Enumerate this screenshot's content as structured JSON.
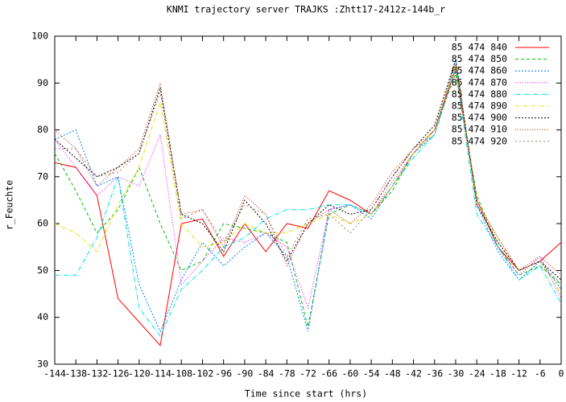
{
  "chart_data": {
    "type": "line",
    "title": "KNMI trajectory server TRAJKS :Zhtt17-2412z-144b_r",
    "xlabel": "Time since start (hrs)",
    "ylabel": "r_Feuchte",
    "x": [
      -144,
      -138,
      -132,
      -126,
      -120,
      -114,
      -108,
      -102,
      -96,
      -90,
      -84,
      -78,
      -72,
      -66,
      -60,
      -54,
      -48,
      -42,
      -36,
      -30,
      -24,
      -18,
      -12,
      -6,
      0
    ],
    "xlim": [
      -144,
      0
    ],
    "ylim": [
      30,
      100
    ],
    "xticks": [
      -144,
      -138,
      -132,
      -126,
      -120,
      -114,
      -108,
      -102,
      -96,
      -90,
      -84,
      -78,
      -72,
      -66,
      -60,
      -54,
      -48,
      -42,
      -36,
      -30,
      -24,
      -18,
      -12,
      -6,
      0
    ],
    "yticks": [
      30,
      40,
      50,
      60,
      70,
      80,
      90,
      100
    ],
    "legend": "upper right",
    "series": [
      {
        "name": "85 474 840",
        "color": "#ff0000",
        "values": [
          73,
          72,
          66,
          44,
          39,
          34,
          60,
          61,
          53,
          60,
          54,
          60,
          59,
          67,
          65,
          62,
          68,
          75,
          80,
          93,
          65,
          55,
          50,
          52,
          56
        ]
      },
      {
        "name": "85 474 850",
        "color": "#00c000",
        "values": [
          75,
          67,
          58,
          63,
          72,
          60,
          50,
          52,
          60,
          59,
          58,
          56,
          38,
          62,
          64,
          62,
          67,
          75,
          80,
          92,
          66,
          55,
          49,
          51,
          47
        ]
      },
      {
        "name": "85 474 860",
        "color": "#0080ff",
        "values": [
          78,
          80,
          68,
          70,
          47,
          37,
          48,
          56,
          51,
          55,
          58,
          53,
          37,
          63,
          64,
          61,
          68,
          75,
          79,
          95,
          64,
          54,
          48,
          52,
          46
        ]
      },
      {
        "name": "85 474 870",
        "color": "#ff00ff",
        "values": [
          78,
          72,
          66,
          70,
          68,
          79,
          47,
          52,
          57,
          56,
          58,
          55,
          42,
          63,
          64,
          62,
          69,
          75,
          80,
          94,
          65,
          55,
          49,
          53,
          44
        ]
      },
      {
        "name": "85 474 880",
        "color": "#00e0e0",
        "values": [
          49,
          49,
          57,
          70,
          42,
          36,
          46,
          50,
          55,
          57,
          61,
          63,
          63,
          64,
          64,
          62,
          68,
          74,
          79,
          93,
          62,
          55,
          48,
          51,
          43
        ]
      },
      {
        "name": "85 474 890",
        "color": "#e0e000",
        "values": [
          60,
          58,
          54,
          64,
          72,
          86,
          60,
          55,
          56,
          60,
          58,
          58,
          60,
          62,
          60,
          62,
          68,
          75,
          80,
          94,
          65,
          56,
          50,
          52,
          45
        ]
      },
      {
        "name": "85 474 900",
        "color": "#000000",
        "values": [
          78,
          74,
          70,
          72,
          75,
          89,
          62,
          60,
          54,
          65,
          60,
          52,
          60,
          64,
          62,
          63,
          70,
          76,
          81,
          95,
          64,
          56,
          50,
          52,
          48
        ]
      },
      {
        "name": "85 474 910",
        "color": "#c02000",
        "values": [
          80,
          76,
          68,
          72,
          76,
          90,
          62,
          63,
          55,
          66,
          62,
          51,
          60,
          63,
          60,
          64,
          71,
          76,
          80,
          94,
          65,
          57,
          50,
          53,
          49
        ]
      },
      {
        "name": "85 474 920",
        "color": "#a08070",
        "values": [
          76,
          76,
          70,
          71,
          75,
          88,
          61,
          63,
          56,
          64,
          62,
          53,
          61,
          62,
          58,
          63,
          70,
          76,
          79,
          93,
          64,
          57,
          50,
          52,
          47
        ]
      }
    ]
  }
}
